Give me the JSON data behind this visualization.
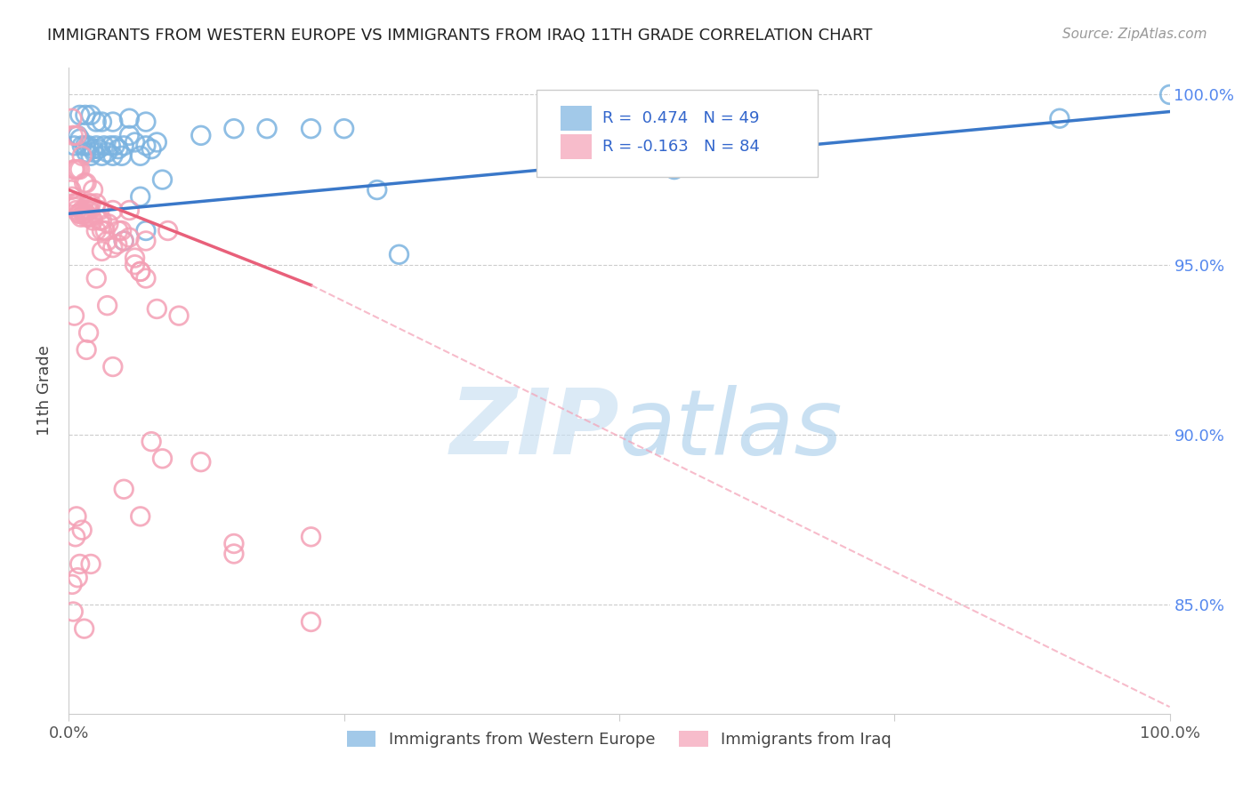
{
  "title": "IMMIGRANTS FROM WESTERN EUROPE VS IMMIGRANTS FROM IRAQ 11TH GRADE CORRELATION CHART",
  "source": "Source: ZipAtlas.com",
  "ylabel": "11th Grade",
  "legend_blue_label": "Immigrants from Western Europe",
  "legend_pink_label": "Immigrants from Iraq",
  "R_blue": 0.474,
  "N_blue": 49,
  "R_pink": -0.163,
  "N_pink": 84,
  "blue_color": "#7BB3E0",
  "pink_color": "#F4A0B5",
  "blue_line_color": "#3A78C9",
  "pink_line_color": "#E8607A",
  "pink_dash_color": "#F4A0B5",
  "background_color": "#FFFFFF",
  "grid_color": "#CCCCCC",
  "ylim_min": 0.818,
  "ylim_max": 1.008,
  "xlim_min": 0.0,
  "xlim_max": 1.0,
  "yticks": [
    0.85,
    0.9,
    0.95,
    1.0
  ],
  "ytick_labels": [
    "85.0%",
    "90.0%",
    "95.0%",
    "100.0%"
  ],
  "xtick_labels_left": "0.0%",
  "xtick_labels_right": "100.0%",
  "blue_line_x0": 0.0,
  "blue_line_y0": 0.965,
  "blue_line_x1": 1.0,
  "blue_line_y1": 0.995,
  "pink_line_x0": 0.0,
  "pink_line_y0": 0.972,
  "pink_line_solid_x1": 0.22,
  "pink_line_solid_y1": 0.944,
  "pink_line_dash_x1": 1.0,
  "pink_line_dash_y1": 0.82,
  "blue_scatter_x": [
    0.005,
    0.008,
    0.01,
    0.012,
    0.015,
    0.016,
    0.018,
    0.02,
    0.022,
    0.023,
    0.025,
    0.027,
    0.03,
    0.032,
    0.035,
    0.038,
    0.04,
    0.042,
    0.045,
    0.048,
    0.05,
    0.055,
    0.06,
    0.065,
    0.07,
    0.075,
    0.08,
    0.01,
    0.015,
    0.02,
    0.025,
    0.03,
    0.04,
    0.055,
    0.07,
    0.085,
    0.12,
    0.15,
    0.18,
    0.22,
    0.25,
    0.28,
    0.3,
    0.05,
    0.065,
    0.07,
    0.55,
    0.9,
    1.0
  ],
  "blue_scatter_y": [
    0.985,
    0.988,
    0.987,
    0.985,
    0.985,
    0.983,
    0.985,
    0.982,
    0.984,
    0.983,
    0.985,
    0.984,
    0.982,
    0.985,
    0.983,
    0.985,
    0.982,
    0.985,
    0.984,
    0.982,
    0.985,
    0.988,
    0.986,
    0.982,
    0.985,
    0.984,
    0.986,
    0.994,
    0.994,
    0.994,
    0.992,
    0.992,
    0.992,
    0.993,
    0.992,
    0.975,
    0.988,
    0.99,
    0.99,
    0.99,
    0.99,
    0.972,
    0.953,
    0.957,
    0.97,
    0.96,
    0.978,
    0.993,
    1.0
  ],
  "pink_scatter_x": [
    0.002,
    0.003,
    0.004,
    0.005,
    0.006,
    0.007,
    0.008,
    0.009,
    0.01,
    0.011,
    0.012,
    0.013,
    0.014,
    0.015,
    0.016,
    0.017,
    0.018,
    0.019,
    0.02,
    0.022,
    0.025,
    0.028,
    0.03,
    0.033,
    0.036,
    0.04,
    0.044,
    0.048,
    0.055,
    0.06,
    0.065,
    0.07,
    0.075,
    0.08,
    0.085,
    0.09,
    0.1,
    0.12,
    0.15,
    0.22,
    0.003,
    0.004,
    0.005,
    0.006,
    0.007,
    0.008,
    0.01,
    0.012,
    0.014,
    0.016,
    0.018,
    0.02,
    0.022,
    0.025,
    0.028,
    0.03,
    0.035,
    0.04,
    0.045,
    0.05,
    0.055,
    0.06,
    0.065,
    0.07,
    0.003,
    0.004,
    0.005,
    0.006,
    0.007,
    0.008,
    0.01,
    0.012,
    0.014,
    0.016,
    0.018,
    0.02,
    0.025,
    0.03,
    0.035,
    0.04,
    0.05,
    0.065,
    0.15,
    0.22
  ],
  "pink_scatter_y": [
    0.972,
    0.97,
    0.968,
    0.967,
    0.968,
    0.966,
    0.968,
    0.965,
    0.965,
    0.964,
    0.966,
    0.965,
    0.966,
    0.965,
    0.964,
    0.966,
    0.964,
    0.966,
    0.964,
    0.963,
    0.96,
    0.966,
    0.963,
    0.96,
    0.962,
    0.955,
    0.956,
    0.96,
    0.958,
    0.95,
    0.948,
    0.946,
    0.898,
    0.937,
    0.893,
    0.96,
    0.935,
    0.892,
    0.868,
    0.87,
    0.993,
    0.988,
    0.978,
    0.978,
    0.988,
    0.978,
    0.978,
    0.982,
    0.974,
    0.974,
    0.968,
    0.968,
    0.972,
    0.968,
    0.963,
    0.96,
    0.957,
    0.966,
    0.96,
    0.957,
    0.966,
    0.952,
    0.948,
    0.957,
    0.856,
    0.848,
    0.935,
    0.87,
    0.876,
    0.858,
    0.862,
    0.872,
    0.843,
    0.925,
    0.93,
    0.862,
    0.946,
    0.954,
    0.938,
    0.92,
    0.884,
    0.876,
    0.865,
    0.845
  ]
}
